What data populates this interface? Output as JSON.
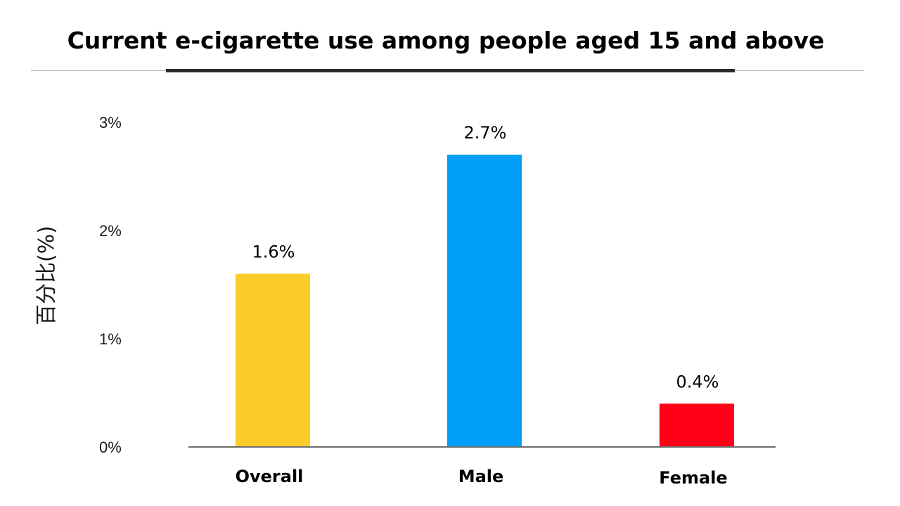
{
  "chart_data": {
    "type": "bar",
    "title": "Current e-cigarette use among people aged 15 and above",
    "ylabel": "百分比(%)",
    "xlabel": "",
    "categories": [
      "Overall",
      "Male",
      "Female"
    ],
    "values": [
      1.6,
      2.7,
      0.4
    ],
    "value_labels": [
      "1.6%",
      "2.7%",
      "0.4%"
    ],
    "bar_colors": [
      "#FCCD2A",
      "#009FF5",
      "#FF0019"
    ],
    "ylim": [
      0,
      3
    ],
    "yticks": [
      {
        "value": 0,
        "label": "0%"
      },
      {
        "value": 1,
        "label": "1%"
      },
      {
        "value": 2,
        "label": "2%"
      },
      {
        "value": 3,
        "label": "3%"
      }
    ],
    "grid": false,
    "legend": "none"
  }
}
